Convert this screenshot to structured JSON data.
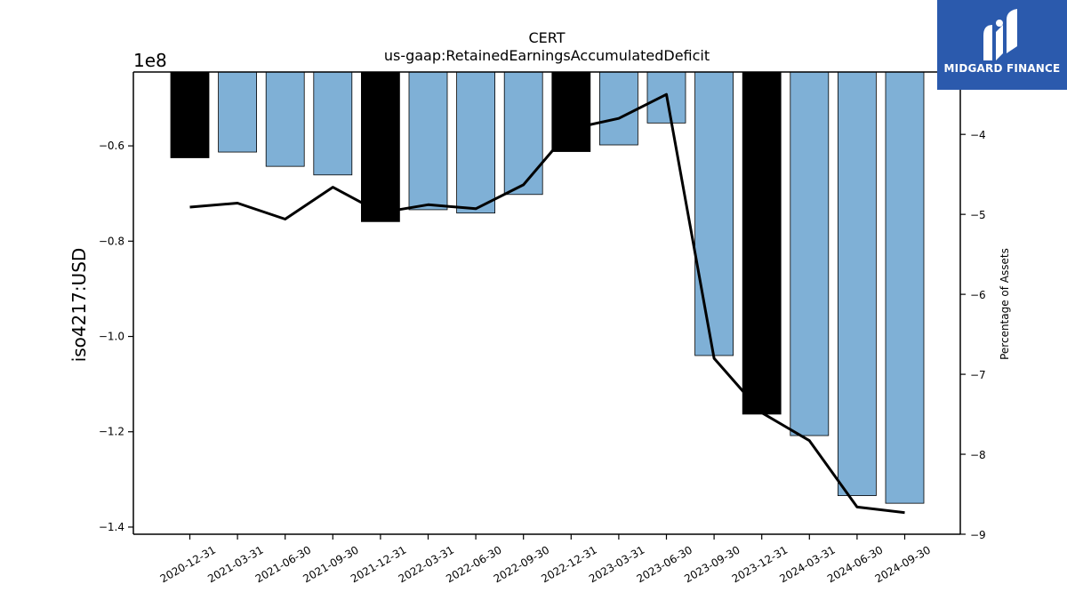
{
  "chart_data": {
    "type": "bar",
    "title": "CERT",
    "subtitle": "us-gaap:RetainedEarningsAccumulatedDeficit",
    "ylabel": "iso4217:USD",
    "y_offset_label": "1e8",
    "y2label": "Percentage of Assets",
    "categories": [
      "2020-12-31",
      "2021-03-31",
      "2021-06-30",
      "2021-09-30",
      "2021-12-31",
      "2022-03-31",
      "2022-06-30",
      "2022-09-30",
      "2022-12-31",
      "2023-03-31",
      "2023-06-30",
      "2023-09-30",
      "2023-12-31",
      "2024-03-31",
      "2024-06-30",
      "2024-09-30"
    ],
    "series": [
      {
        "axis": "left",
        "type": "bar",
        "values": [
          -0.625,
          -0.613,
          -0.643,
          -0.661,
          -0.759,
          -0.734,
          -0.741,
          -0.702,
          -0.612,
          -0.598,
          -0.552,
          -1.04,
          -1.163,
          -1.208,
          -1.334,
          -1.35
        ]
      },
      {
        "axis": "right",
        "type": "line",
        "values": [
          -4.91,
          -4.86,
          -5.06,
          -4.66,
          -4.98,
          -4.88,
          -4.93,
          -4.63,
          -3.93,
          -3.8,
          -3.5,
          -6.8,
          -7.48,
          -7.83,
          -8.66,
          -8.73
        ]
      }
    ],
    "highlight_indices": [
      0,
      4,
      8,
      12
    ],
    "ylim": [
      -1.415,
      -0.445
    ],
    "yticks": [
      -1.4,
      -1.2,
      -1.0,
      -0.8,
      -0.6
    ],
    "ytick_labels": [
      "−1.4",
      "−1.2",
      "−1.0",
      "−0.8",
      "−0.6"
    ],
    "y2lim": [
      -9,
      -3.22
    ],
    "y2ticks": [
      -9,
      -8,
      -7,
      -6,
      -5,
      -4
    ],
    "y2tick_labels": [
      "−9",
      "−8",
      "−7",
      "−6",
      "−5",
      "−4"
    ],
    "colors": {
      "bar": "#7fb0d6",
      "highlight_bar": "#000000",
      "line": "#000000"
    },
    "grid": false,
    "legend": "none"
  },
  "logo": {
    "text": "MIDGARD FINANCE"
  }
}
